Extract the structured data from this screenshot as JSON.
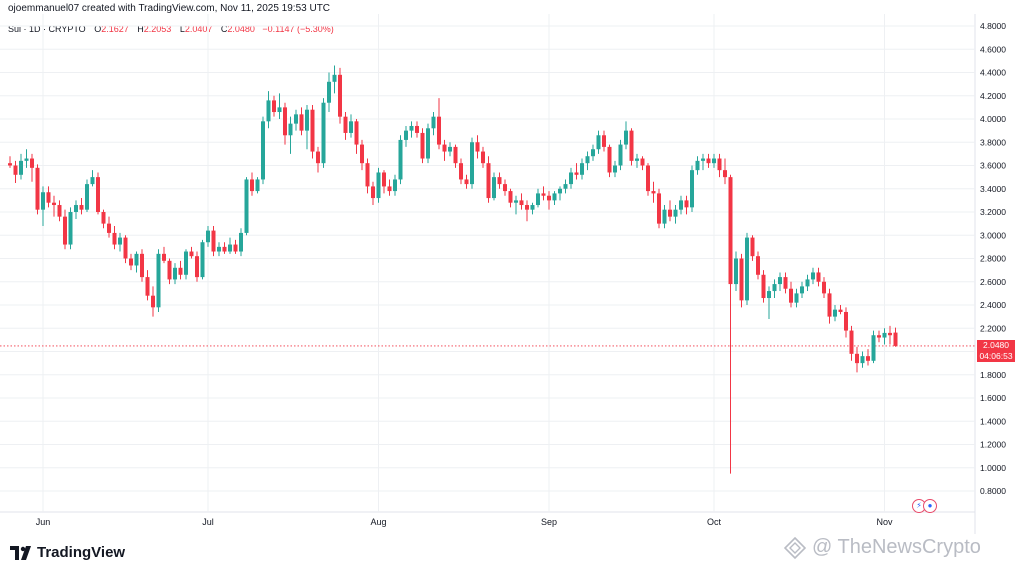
{
  "header": {
    "created_by": "ojoemmanuel07 created with TradingView.com, Nov 11, 2025 19:53 UTC"
  },
  "legend": {
    "symbol": "Sui · 1D · CRYPTO",
    "open_label": "O",
    "open": "2.1627",
    "high_label": "H",
    "high": "2.2053",
    "low_label": "L",
    "low": "2.0407",
    "close_label": "C",
    "close": "2.0480",
    "change": "−0.1147 (−5.30%)"
  },
  "price_tag": {
    "price": "2.0480",
    "countdown": "04:06:53"
  },
  "brand": {
    "name": "TradingView",
    "logo_icon": "tradingview-logo-icon"
  },
  "watermark": {
    "text": "@ TheNewsCrypto",
    "icon": "thenewscrypto-logo-icon"
  },
  "colors": {
    "up": "#26a69a",
    "down": "#f23645",
    "grid": "#eef0f3",
    "axis_text": "#131722"
  },
  "chart_data": {
    "type": "candlestick",
    "title": "",
    "xlabel": "",
    "ylabel": "",
    "ylim": [
      0.65,
      4.9
    ],
    "y_ticks": [
      "4.8000",
      "4.6000",
      "4.4000",
      "4.2000",
      "4.0000",
      "3.8000",
      "3.6000",
      "3.4000",
      "3.2000",
      "3.0000",
      "2.8000",
      "2.6000",
      "2.4000",
      "2.2000",
      "2.0000",
      "1.8000",
      "1.6000",
      "1.4000",
      "1.2000",
      "1.0000",
      "0.8000"
    ],
    "x_labels": [
      {
        "label": "Jun",
        "index": 6
      },
      {
        "label": "Jul",
        "index": 36
      },
      {
        "label": "Aug",
        "index": 67
      },
      {
        "label": "Sep",
        "index": 98
      },
      {
        "label": "Oct",
        "index": 128
      },
      {
        "label": "Nov",
        "index": 159
      }
    ],
    "grid": true,
    "current_price": 2.048,
    "candles": [
      [
        3.62,
        3.68,
        3.58,
        3.6
      ],
      [
        3.6,
        3.64,
        3.45,
        3.52
      ],
      [
        3.52,
        3.7,
        3.48,
        3.64
      ],
      [
        3.64,
        3.74,
        3.58,
        3.66
      ],
      [
        3.66,
        3.7,
        3.46,
        3.58
      ],
      [
        3.58,
        3.61,
        3.18,
        3.22
      ],
      [
        3.22,
        3.42,
        3.08,
        3.37
      ],
      [
        3.37,
        3.42,
        3.24,
        3.28
      ],
      [
        3.28,
        3.34,
        3.16,
        3.26
      ],
      [
        3.26,
        3.3,
        3.12,
        3.16
      ],
      [
        3.16,
        3.22,
        2.88,
        2.92
      ],
      [
        2.92,
        3.24,
        2.88,
        3.2
      ],
      [
        3.2,
        3.3,
        3.14,
        3.26
      ],
      [
        3.26,
        3.32,
        3.18,
        3.22
      ],
      [
        3.22,
        3.48,
        3.2,
        3.44
      ],
      [
        3.44,
        3.56,
        3.42,
        3.5
      ],
      [
        3.5,
        3.54,
        3.18,
        3.2
      ],
      [
        3.2,
        3.22,
        3.06,
        3.1
      ],
      [
        3.1,
        3.16,
        2.98,
        3.02
      ],
      [
        3.02,
        3.08,
        2.88,
        2.92
      ],
      [
        2.92,
        3.02,
        2.86,
        2.98
      ],
      [
        2.98,
        3.0,
        2.76,
        2.8
      ],
      [
        2.8,
        2.84,
        2.7,
        2.74
      ],
      [
        2.74,
        2.86,
        2.68,
        2.84
      ],
      [
        2.84,
        2.88,
        2.6,
        2.64
      ],
      [
        2.64,
        2.7,
        2.44,
        2.48
      ],
      [
        2.48,
        2.56,
        2.3,
        2.38
      ],
      [
        2.38,
        2.88,
        2.34,
        2.84
      ],
      [
        2.84,
        2.9,
        2.76,
        2.78
      ],
      [
        2.78,
        2.8,
        2.58,
        2.62
      ],
      [
        2.62,
        2.76,
        2.58,
        2.72
      ],
      [
        2.72,
        2.78,
        2.62,
        2.66
      ],
      [
        2.66,
        2.88,
        2.62,
        2.86
      ],
      [
        2.86,
        2.9,
        2.8,
        2.82
      ],
      [
        2.82,
        2.86,
        2.6,
        2.64
      ],
      [
        2.64,
        2.96,
        2.62,
        2.94
      ],
      [
        2.94,
        3.08,
        2.9,
        3.04
      ],
      [
        3.04,
        3.08,
        2.82,
        2.86
      ],
      [
        2.86,
        2.94,
        2.82,
        2.9
      ],
      [
        2.9,
        2.94,
        2.84,
        2.86
      ],
      [
        2.86,
        2.98,
        2.84,
        2.92
      ],
      [
        2.92,
        2.96,
        2.84,
        2.86
      ],
      [
        2.86,
        3.06,
        2.82,
        3.02
      ],
      [
        3.02,
        3.5,
        3.0,
        3.48
      ],
      [
        3.48,
        3.54,
        3.34,
        3.38
      ],
      [
        3.38,
        3.5,
        3.36,
        3.48
      ],
      [
        3.48,
        4.02,
        3.44,
        3.98
      ],
      [
        3.98,
        4.24,
        3.92,
        4.16
      ],
      [
        4.16,
        4.2,
        4.02,
        4.06
      ],
      [
        4.06,
        4.22,
        4.0,
        4.1
      ],
      [
        4.1,
        4.14,
        3.78,
        3.86
      ],
      [
        3.86,
        4.02,
        3.7,
        3.96
      ],
      [
        3.96,
        4.08,
        3.9,
        4.04
      ],
      [
        4.04,
        4.1,
        3.86,
        3.9
      ],
      [
        3.9,
        4.12,
        3.74,
        4.08
      ],
      [
        4.08,
        4.12,
        3.66,
        3.72
      ],
      [
        3.72,
        3.76,
        3.54,
        3.62
      ],
      [
        3.62,
        4.18,
        3.58,
        4.14
      ],
      [
        4.14,
        4.4,
        4.06,
        4.32
      ],
      [
        4.32,
        4.46,
        4.22,
        4.38
      ],
      [
        4.38,
        4.44,
        3.96,
        4.02
      ],
      [
        4.02,
        4.06,
        3.82,
        3.88
      ],
      [
        3.88,
        4.04,
        3.84,
        3.98
      ],
      [
        3.98,
        4.0,
        3.7,
        3.78
      ],
      [
        3.78,
        3.82,
        3.56,
        3.62
      ],
      [
        3.62,
        3.66,
        3.36,
        3.42
      ],
      [
        3.42,
        3.46,
        3.26,
        3.32
      ],
      [
        3.32,
        3.58,
        3.28,
        3.54
      ],
      [
        3.54,
        3.56,
        3.36,
        3.42
      ],
      [
        3.42,
        3.48,
        3.34,
        3.38
      ],
      [
        3.38,
        3.52,
        3.34,
        3.48
      ],
      [
        3.48,
        3.86,
        3.44,
        3.82
      ],
      [
        3.82,
        3.94,
        3.76,
        3.9
      ],
      [
        3.9,
        3.98,
        3.84,
        3.94
      ],
      [
        3.94,
        3.98,
        3.84,
        3.88
      ],
      [
        3.88,
        3.92,
        3.62,
        3.66
      ],
      [
        3.66,
        3.96,
        3.62,
        3.92
      ],
      [
        3.92,
        4.06,
        3.86,
        4.02
      ],
      [
        4.02,
        4.18,
        3.74,
        3.78
      ],
      [
        3.78,
        3.82,
        3.64,
        3.72
      ],
      [
        3.72,
        3.8,
        3.68,
        3.76
      ],
      [
        3.76,
        3.78,
        3.58,
        3.62
      ],
      [
        3.62,
        3.66,
        3.44,
        3.48
      ],
      [
        3.48,
        3.52,
        3.4,
        3.44
      ],
      [
        3.44,
        3.84,
        3.4,
        3.8
      ],
      [
        3.8,
        3.86,
        3.66,
        3.72
      ],
      [
        3.72,
        3.76,
        3.58,
        3.62
      ],
      [
        3.62,
        3.68,
        3.28,
        3.32
      ],
      [
        3.32,
        3.54,
        3.3,
        3.5
      ],
      [
        3.5,
        3.54,
        3.4,
        3.44
      ],
      [
        3.44,
        3.48,
        3.34,
        3.38
      ],
      [
        3.38,
        3.4,
        3.24,
        3.28
      ],
      [
        3.28,
        3.34,
        3.18,
        3.3
      ],
      [
        3.3,
        3.36,
        3.22,
        3.26
      ],
      [
        3.26,
        3.3,
        3.12,
        3.22
      ],
      [
        3.22,
        3.28,
        3.18,
        3.26
      ],
      [
        3.26,
        3.4,
        3.24,
        3.36
      ],
      [
        3.36,
        3.42,
        3.3,
        3.34
      ],
      [
        3.34,
        3.38,
        3.22,
        3.3
      ],
      [
        3.3,
        3.38,
        3.26,
        3.36
      ],
      [
        3.36,
        3.42,
        3.3,
        3.4
      ],
      [
        3.4,
        3.48,
        3.36,
        3.44
      ],
      [
        3.44,
        3.58,
        3.4,
        3.54
      ],
      [
        3.54,
        3.62,
        3.48,
        3.52
      ],
      [
        3.52,
        3.66,
        3.48,
        3.62
      ],
      [
        3.62,
        3.72,
        3.56,
        3.68
      ],
      [
        3.68,
        3.78,
        3.64,
        3.74
      ],
      [
        3.74,
        3.9,
        3.7,
        3.86
      ],
      [
        3.86,
        3.9,
        3.72,
        3.76
      ],
      [
        3.76,
        3.78,
        3.5,
        3.54
      ],
      [
        3.54,
        3.64,
        3.5,
        3.6
      ],
      [
        3.6,
        3.82,
        3.56,
        3.78
      ],
      [
        3.78,
        3.98,
        3.74,
        3.9
      ],
      [
        3.9,
        3.92,
        3.6,
        3.64
      ],
      [
        3.64,
        3.7,
        3.58,
        3.66
      ],
      [
        3.66,
        3.68,
        3.56,
        3.6
      ],
      [
        3.6,
        3.62,
        3.34,
        3.38
      ],
      [
        3.38,
        3.46,
        3.28,
        3.36
      ],
      [
        3.36,
        3.4,
        3.06,
        3.1
      ],
      [
        3.1,
        3.26,
        3.06,
        3.22
      ],
      [
        3.22,
        3.3,
        3.12,
        3.16
      ],
      [
        3.16,
        3.26,
        3.1,
        3.22
      ],
      [
        3.22,
        3.34,
        3.18,
        3.3
      ],
      [
        3.3,
        3.34,
        3.18,
        3.24
      ],
      [
        3.24,
        3.6,
        3.2,
        3.56
      ],
      [
        3.56,
        3.68,
        3.52,
        3.64
      ],
      [
        3.64,
        3.7,
        3.56,
        3.66
      ],
      [
        3.66,
        3.7,
        3.58,
        3.62
      ],
      [
        3.62,
        3.7,
        3.58,
        3.66
      ],
      [
        3.66,
        3.7,
        3.5,
        3.56
      ],
      [
        3.56,
        3.66,
        3.44,
        3.5
      ],
      [
        3.5,
        3.52,
        0.95,
        2.58
      ],
      [
        2.58,
        2.86,
        2.52,
        2.8
      ],
      [
        2.8,
        2.84,
        2.38,
        2.44
      ],
      [
        2.44,
        3.02,
        2.4,
        2.98
      ],
      [
        2.98,
        3.0,
        2.78,
        2.82
      ],
      [
        2.82,
        2.86,
        2.62,
        2.66
      ],
      [
        2.66,
        2.7,
        2.42,
        2.46
      ],
      [
        2.46,
        2.56,
        2.28,
        2.52
      ],
      [
        2.52,
        2.62,
        2.46,
        2.58
      ],
      [
        2.58,
        2.68,
        2.52,
        2.64
      ],
      [
        2.64,
        2.68,
        2.5,
        2.54
      ],
      [
        2.54,
        2.6,
        2.38,
        2.42
      ],
      [
        2.42,
        2.54,
        2.38,
        2.5
      ],
      [
        2.5,
        2.6,
        2.46,
        2.56
      ],
      [
        2.56,
        2.66,
        2.52,
        2.62
      ],
      [
        2.62,
        2.72,
        2.58,
        2.68
      ],
      [
        2.68,
        2.72,
        2.56,
        2.6
      ],
      [
        2.6,
        2.64,
        2.46,
        2.5
      ],
      [
        2.5,
        2.54,
        2.24,
        2.3
      ],
      [
        2.3,
        2.4,
        2.26,
        2.36
      ],
      [
        2.36,
        2.4,
        2.32,
        2.34
      ],
      [
        2.34,
        2.38,
        2.12,
        2.18
      ],
      [
        2.18,
        2.22,
        1.92,
        1.98
      ],
      [
        1.98,
        2.04,
        1.82,
        1.9
      ],
      [
        1.9,
        2.0,
        1.86,
        1.96
      ],
      [
        1.96,
        2.02,
        1.88,
        1.92
      ],
      [
        1.92,
        2.18,
        1.9,
        2.14
      ],
      [
        2.14,
        2.18,
        2.08,
        2.12
      ],
      [
        2.12,
        2.2,
        2.06,
        2.16
      ],
      [
        2.16,
        2.22,
        2.06,
        2.14
      ],
      [
        2.1627,
        2.2053,
        2.0407,
        2.048
      ]
    ]
  }
}
